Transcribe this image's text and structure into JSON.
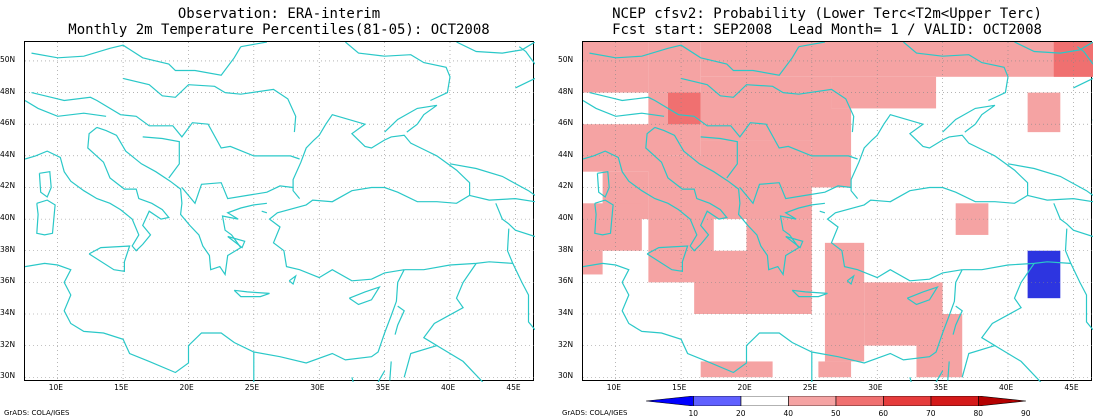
{
  "left_panel": {
    "title_line1": "Observation: ERA-interim",
    "title_line2": "Monthly 2m Temperature Percentiles(81-05): OCT2008",
    "credit": "GrADS: COLA/IGES"
  },
  "right_panel": {
    "title_line1": "NCEP cfsv2: Probability (Lower Terc<T2m<Upper Terc)",
    "title_line2": "Fcst start: SEP2008  Lead Month= 1 / VALID: OCT2008",
    "credit": "GrADS: COLA/IGES"
  },
  "map": {
    "lon_range": [
      7.5,
      46.5
    ],
    "lat_range": [
      29.7,
      51.2
    ],
    "lat_labels": [
      "50N",
      "48N",
      "46N",
      "44N",
      "42N",
      "40N",
      "38N",
      "36N",
      "34N",
      "32N",
      "30N"
    ],
    "lat_values": [
      50,
      48,
      46,
      44,
      42,
      40,
      38,
      36,
      34,
      32,
      30
    ],
    "lon_labels": [
      "10E",
      "15E",
      "20E",
      "25E",
      "30E",
      "35E",
      "40E",
      "45E"
    ],
    "lon_values": [
      10,
      15,
      20,
      25,
      30,
      35,
      40,
      45
    ],
    "coast_color": "#2ac8c8",
    "grid": "dotted"
  },
  "colorbar": {
    "labels": [
      "10",
      "20",
      "40",
      "50",
      "60",
      "70",
      "80",
      "90"
    ],
    "colors": [
      "#0000ff",
      "#6060ff",
      "#ffffff",
      "#f5a3a3",
      "#f07070",
      "#e63c3c",
      "#d41a1a",
      "#b40000"
    ]
  },
  "legend_colors": {
    "c50": "#f5a3a3",
    "c60": "#f07070",
    "c20": "#2d35e0"
  },
  "prob_cells": [
    {
      "lon": [
        7.5,
        12.5
      ],
      "lat": [
        48,
        51.2
      ],
      "cat": "c50"
    },
    {
      "lon": [
        12.5,
        16.5
      ],
      "lat": [
        48,
        51.2
      ],
      "cat": "c50"
    },
    {
      "lon": [
        16.5,
        46.5
      ],
      "lat": [
        49,
        51.2
      ],
      "cat": "c50"
    },
    {
      "lon": [
        43.5,
        46.5
      ],
      "lat": [
        49,
        51.2
      ],
      "cat": "c60"
    },
    {
      "lon": [
        12.5,
        16.5
      ],
      "lat": [
        44,
        48
      ],
      "cat": "c50"
    },
    {
      "lon": [
        14,
        16.5
      ],
      "lat": [
        46,
        48
      ],
      "cat": "c60"
    },
    {
      "lon": [
        16.5,
        26.5
      ],
      "lat": [
        45,
        49
      ],
      "cat": "c50"
    },
    {
      "lon": [
        26.5,
        34.5
      ],
      "lat": [
        47,
        49
      ],
      "cat": "c50"
    },
    {
      "lon": [
        41.5,
        44
      ],
      "lat": [
        45.5,
        48
      ],
      "cat": "c50"
    },
    {
      "lon": [
        7.5,
        14
      ],
      "lat": [
        43,
        46
      ],
      "cat": "c50"
    },
    {
      "lon": [
        9,
        12.5
      ],
      "lat": [
        40,
        43
      ],
      "cat": "c50"
    },
    {
      "lon": [
        7.5,
        12
      ],
      "lat": [
        38,
        41
      ],
      "cat": "c50"
    },
    {
      "lon": [
        7.5,
        9
      ],
      "lat": [
        36.5,
        38
      ],
      "cat": "c50"
    },
    {
      "lon": [
        12.5,
        17.5
      ],
      "lat": [
        36,
        44
      ],
      "cat": "c50"
    },
    {
      "lon": [
        16,
        20
      ],
      "lat": [
        34,
        38
      ],
      "cat": "c50"
    },
    {
      "lon": [
        16.5,
        25
      ],
      "lat": [
        40,
        45
      ],
      "cat": "c50"
    },
    {
      "lon": [
        20,
        25
      ],
      "lat": [
        34,
        40
      ],
      "cat": "c50"
    },
    {
      "lon": [
        25,
        28
      ],
      "lat": [
        42,
        47
      ],
      "cat": "c50"
    },
    {
      "lon": [
        26,
        29
      ],
      "lat": [
        31,
        38.5
      ],
      "cat": "c50"
    },
    {
      "lon": [
        29,
        35
      ],
      "lat": [
        32,
        36
      ],
      "cat": "c50"
    },
    {
      "lon": [
        33,
        36.5
      ],
      "lat": [
        30,
        34
      ],
      "cat": "c50"
    },
    {
      "lon": [
        16.5,
        22
      ],
      "lat": [
        30,
        31
      ],
      "cat": "c50"
    },
    {
      "lon": [
        25.5,
        28
      ],
      "lat": [
        30,
        31
      ],
      "cat": "c50"
    },
    {
      "lon": [
        36,
        38.5
      ],
      "lat": [
        39,
        41
      ],
      "cat": "c50"
    },
    {
      "lon": [
        41.5,
        44
      ],
      "lat": [
        35,
        38
      ],
      "cat": "c20"
    }
  ]
}
